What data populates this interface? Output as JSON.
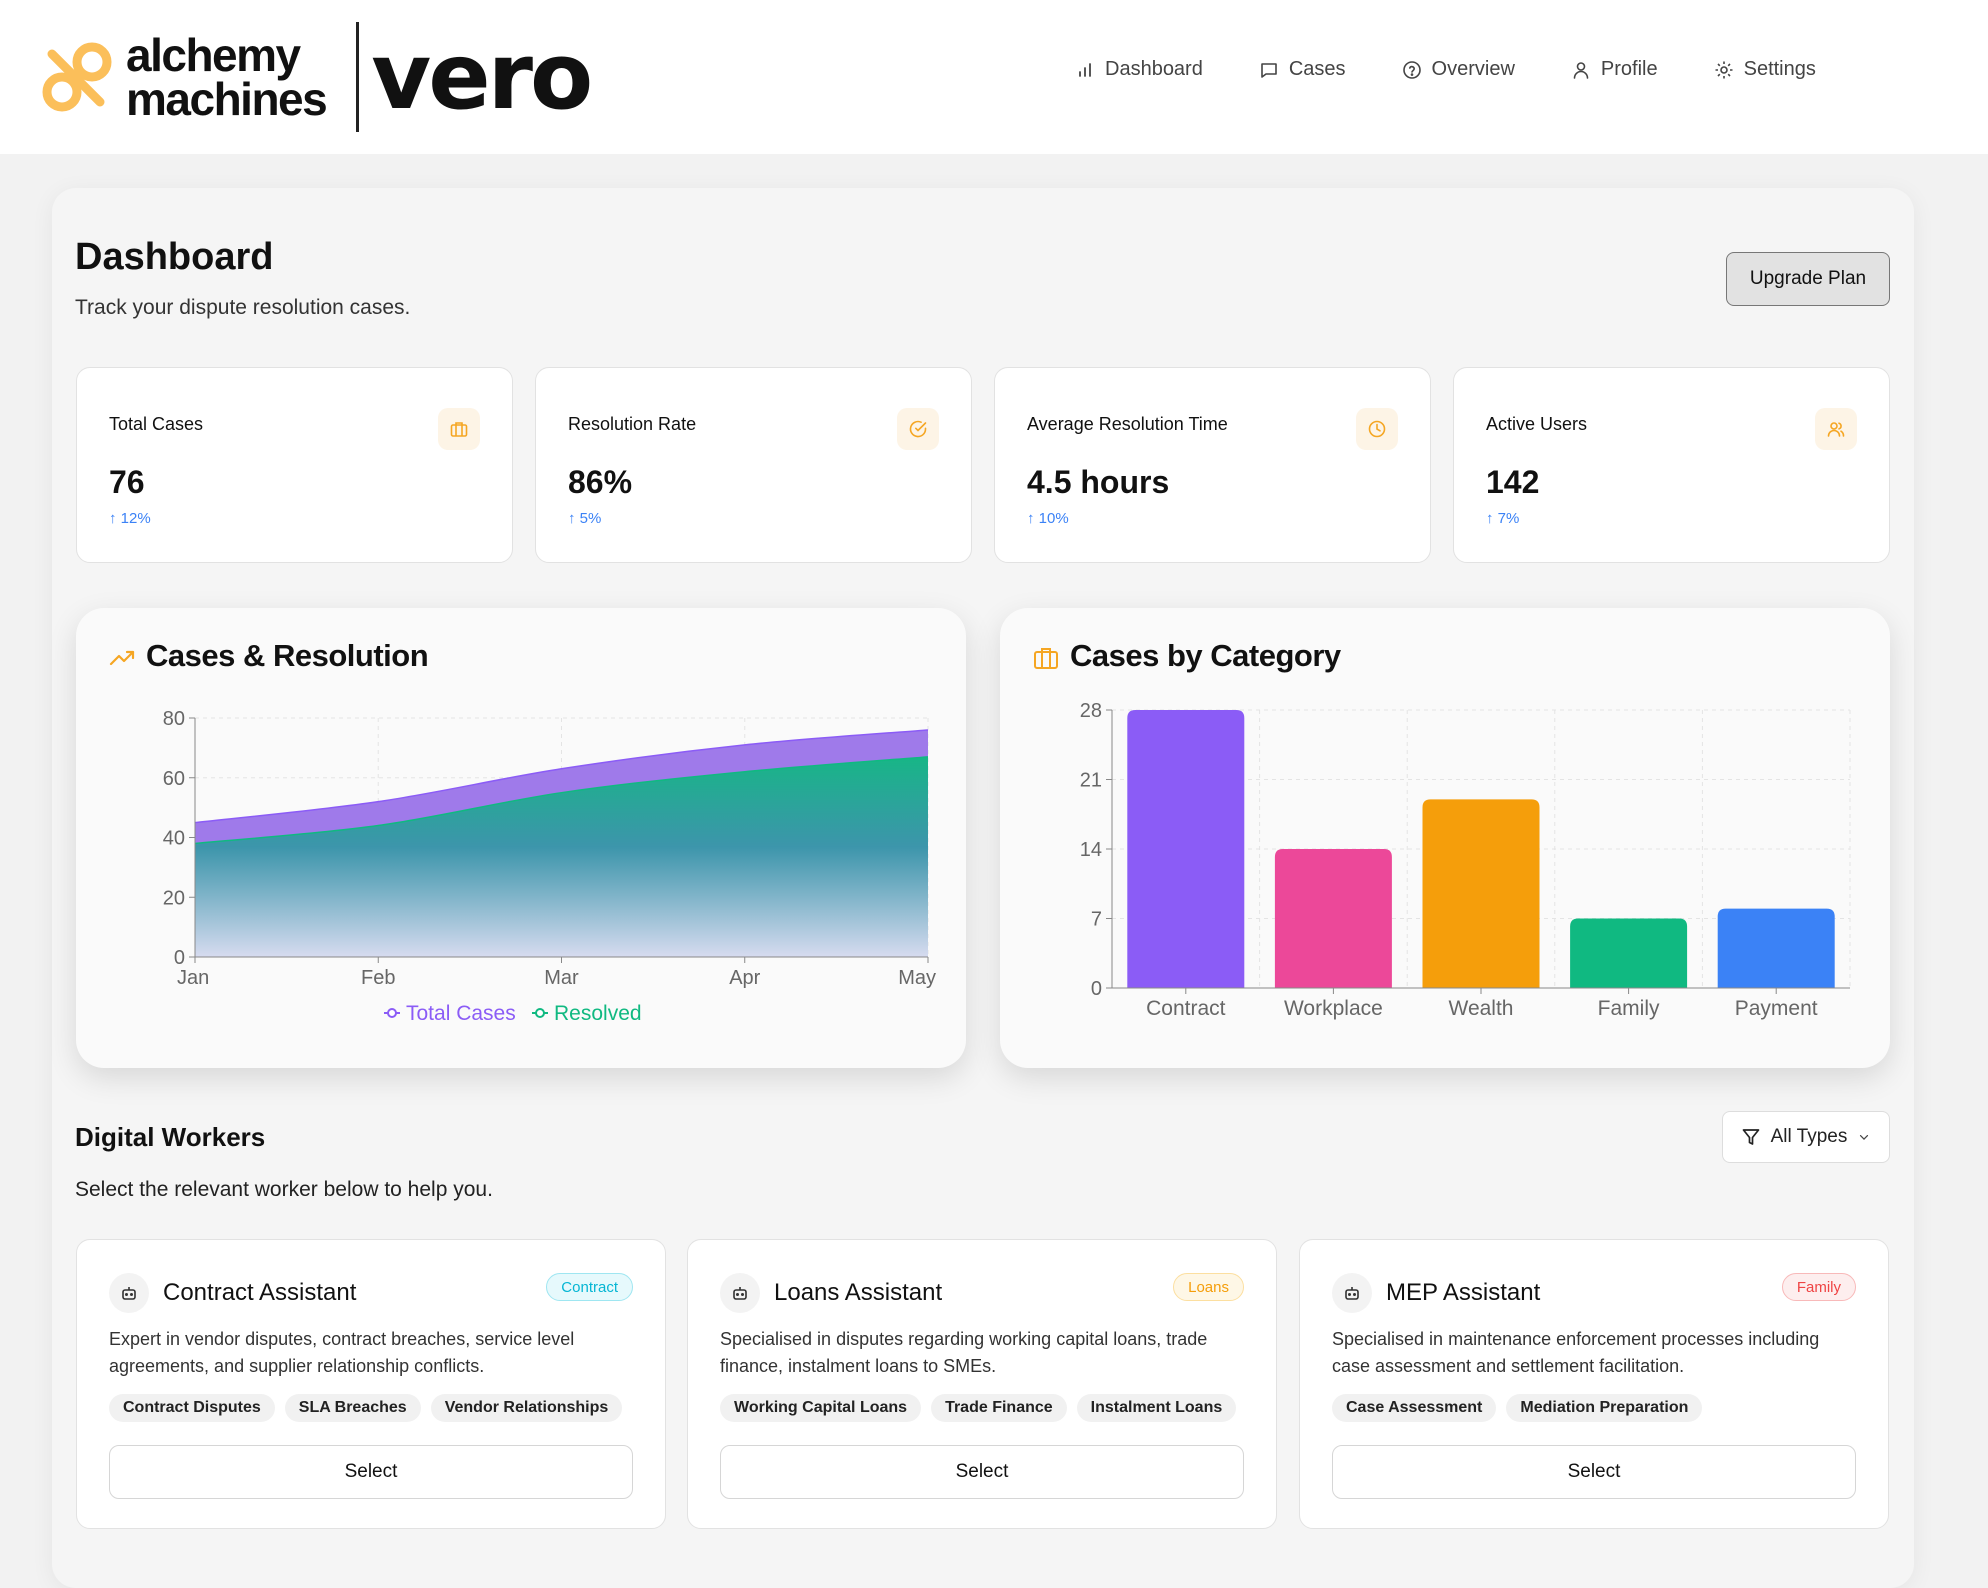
{
  "header": {
    "brand_name": "alchemy machines",
    "brand_line1": "alchemy",
    "brand_line2": "machines",
    "product": "vero",
    "brand_color": "#fbbf5a",
    "nav": [
      {
        "label": "Dashboard",
        "icon": "bar-chart-icon"
      },
      {
        "label": "Cases",
        "icon": "message-square-icon"
      },
      {
        "label": "Overview",
        "icon": "help-circle-icon"
      },
      {
        "label": "Profile",
        "icon": "user-icon"
      },
      {
        "label": "Settings",
        "icon": "gear-icon"
      }
    ]
  },
  "page": {
    "title": "Dashboard",
    "subtitle": "Track your dispute resolution cases.",
    "upgrade_label": "Upgrade Plan"
  },
  "stats": [
    {
      "label": "Total Cases",
      "value": "76",
      "trend": "↑ 12%",
      "icon": "briefcase-icon"
    },
    {
      "label": "Resolution Rate",
      "value": "86%",
      "trend": "↑ 5%",
      "icon": "check-circle-icon"
    },
    {
      "label": "Average Resolution Time",
      "value": "4.5 hours",
      "trend": "↑ 10%",
      "icon": "clock-icon"
    },
    {
      "label": "Active Users",
      "value": "142",
      "trend": "↑ 7%",
      "icon": "users-icon"
    }
  ],
  "charts": {
    "cases_title": "Cases & Resolution",
    "category_title": "Cases by Category"
  },
  "chart_data": [
    {
      "type": "area",
      "title": "Cases & Resolution",
      "categories": [
        "Jan",
        "Feb",
        "Mar",
        "Apr",
        "May"
      ],
      "ylim": [
        0,
        80
      ],
      "yticks": [
        0,
        20,
        40,
        60,
        80
      ],
      "grid": true,
      "legend": "bottom-center",
      "series": [
        {
          "name": "Total Cases",
          "values": [
            45,
            52,
            63,
            71,
            76
          ],
          "color": "#8b5cf6"
        },
        {
          "name": "Resolved",
          "values": [
            38,
            44,
            55,
            62,
            67
          ],
          "color": "#10b981"
        }
      ]
    },
    {
      "type": "bar",
      "title": "Cases by Category",
      "categories": [
        "Contract",
        "Workplace",
        "Wealth",
        "Family",
        "Payment"
      ],
      "values": [
        28,
        14,
        19,
        7,
        8
      ],
      "colors": [
        "#8b5cf6",
        "#ec4899",
        "#f59e0b",
        "#10b981",
        "#3b82f6"
      ],
      "ylim": [
        0,
        28
      ],
      "yticks": [
        0,
        7,
        14,
        21,
        28
      ],
      "grid": true
    }
  ],
  "workers_section": {
    "title": "Digital Workers",
    "subtitle": "Select the relevant worker below to help you.",
    "filter_label": "All Types"
  },
  "workers": [
    {
      "name": "Contract Assistant",
      "badge": "Contract",
      "badge_color": "#06b6d4",
      "description": "Expert in vendor disputes, contract breaches, service level agreements, and supplier relationship conflicts.",
      "tags": [
        "Contract Disputes",
        "SLA Breaches",
        "Vendor Relationships"
      ],
      "select_label": "Select"
    },
    {
      "name": "Loans Assistant",
      "badge": "Loans",
      "badge_color": "#f59e0b",
      "description": "Specialised in disputes regarding working capital loans, trade finance, instalment loans to SMEs.",
      "tags": [
        "Working Capital Loans",
        "Trade Finance",
        "Instalment Loans"
      ],
      "select_label": "Select"
    },
    {
      "name": "MEP Assistant",
      "badge": "Family",
      "badge_color": "#ef4444",
      "description": "Specialised in maintenance enforcement processes including case assessment and settlement facilitation.",
      "tags": [
        "Case Assessment",
        "Mediation Preparation"
      ],
      "select_label": "Select"
    }
  ]
}
